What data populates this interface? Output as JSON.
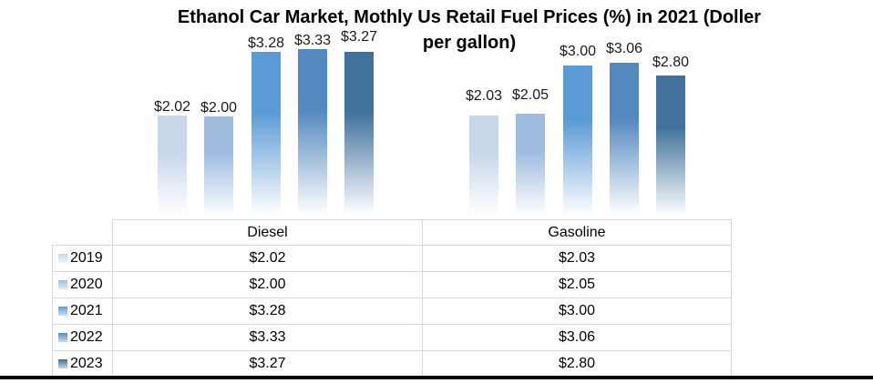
{
  "title": {
    "line1": "Ethanol Car Market, Mothly Us Retail Fuel Prices (%) in 2021 (Doller",
    "line2": "per gallon)"
  },
  "chart_data": {
    "type": "bar",
    "title": "Ethanol Car Market, Mothly Us Retail Fuel Prices (%) in 2021 (Doller per gallon)",
    "categories": [
      "Diesel",
      "Gasoline"
    ],
    "series": [
      {
        "name": "2019",
        "color": "#c9d7eb",
        "values": [
          2.02,
          2.03
        ]
      },
      {
        "name": "2020",
        "color": "#9fbcdf",
        "values": [
          2.0,
          2.05
        ]
      },
      {
        "name": "2021",
        "color": "#5b9bd5",
        "values": [
          3.28,
          3.0
        ]
      },
      {
        "name": "2022",
        "color": "#5389bf",
        "values": [
          3.33,
          3.06
        ]
      },
      {
        "name": "2023",
        "color": "#41719c",
        "values": [
          3.27,
          2.8
        ]
      }
    ],
    "value_prefix": "$",
    "data_labels_shown": true,
    "axes_hidden": true,
    "gridlines": false,
    "legend_position": "table-rows-left",
    "ylim": [
      0,
      3.6
    ],
    "bar_style": "vertical gradient fading to white at base"
  },
  "table": {
    "columns": [
      "Diesel",
      "Gasoline"
    ],
    "rows": [
      {
        "label": "2019",
        "values": [
          "$2.02",
          "$2.03"
        ]
      },
      {
        "label": "2020",
        "values": [
          "$2.00",
          "$2.05"
        ]
      },
      {
        "label": "2021",
        "values": [
          "$3.28",
          "$3.00"
        ]
      },
      {
        "label": "2022",
        "values": [
          "$3.33",
          "$3.06"
        ]
      },
      {
        "label": "2023",
        "values": [
          "$3.27",
          "$2.80"
        ]
      }
    ]
  }
}
